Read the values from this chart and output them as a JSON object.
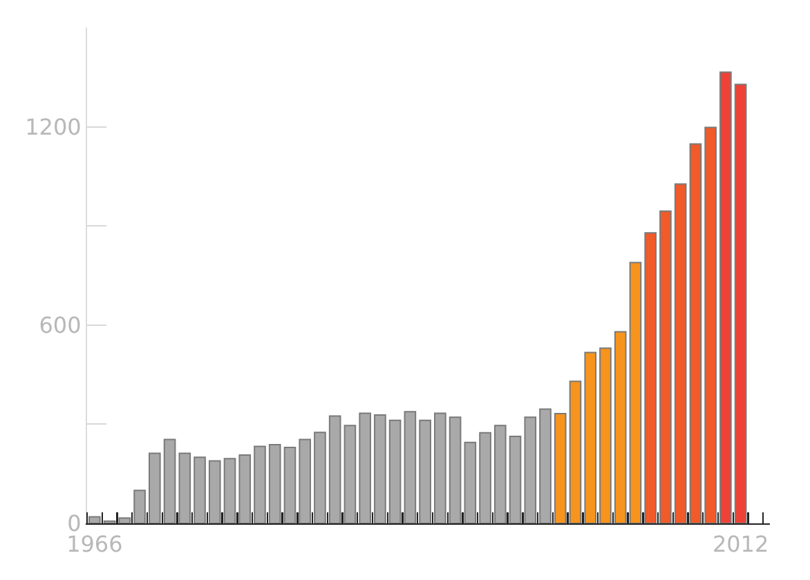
{
  "chart_data": {
    "type": "bar",
    "categories": [
      "1966",
      null,
      null,
      null,
      null,
      null,
      null,
      null,
      null,
      null,
      null,
      null,
      null,
      null,
      null,
      null,
      null,
      null,
      null,
      null,
      null,
      null,
      null,
      null,
      null,
      null,
      null,
      null,
      null,
      null,
      null,
      null,
      null,
      null,
      null,
      null,
      null,
      null,
      null,
      null,
      null,
      null,
      null,
      "2012"
    ],
    "values": [
      20,
      7,
      16,
      100,
      212,
      254,
      212,
      200,
      189,
      196,
      207,
      233,
      238,
      230,
      254,
      275,
      325,
      296,
      333,
      328,
      312,
      338,
      312,
      333,
      321,
      245,
      274,
      296,
      263,
      321,
      346,
      332,
      430,
      517,
      530,
      580,
      789,
      879,
      945,
      1027,
      1148,
      1198,
      1365,
      1328
    ],
    "colors": [
      "#a9a9a9",
      "#a9a9a9",
      "#a9a9a9",
      "#a9a9a9",
      "#a9a9a9",
      "#a9a9a9",
      "#a9a9a9",
      "#a9a9a9",
      "#a9a9a9",
      "#a9a9a9",
      "#a9a9a9",
      "#a9a9a9",
      "#a9a9a9",
      "#a9a9a9",
      "#a9a9a9",
      "#a9a9a9",
      "#a9a9a9",
      "#a9a9a9",
      "#a9a9a9",
      "#a9a9a9",
      "#a9a9a9",
      "#a9a9a9",
      "#a9a9a9",
      "#a9a9a9",
      "#a9a9a9",
      "#a9a9a9",
      "#a9a9a9",
      "#a9a9a9",
      "#a9a9a9",
      "#a9a9a9",
      "#a9a9a9",
      "#f7941d",
      "#f7941d",
      "#f7941d",
      "#f7941d",
      "#f7941d",
      "#f7941d",
      "#f15a29",
      "#f15a29",
      "#f15a29",
      "#f15a29",
      "#f15a29",
      "#ef4136",
      "#ef4136"
    ],
    "ylim": [
      0,
      1500
    ],
    "yticks": [
      0,
      {
        "value": 300,
        "label": null
      },
      600,
      {
        "value": 900,
        "label": null
      },
      1200
    ]
  }
}
